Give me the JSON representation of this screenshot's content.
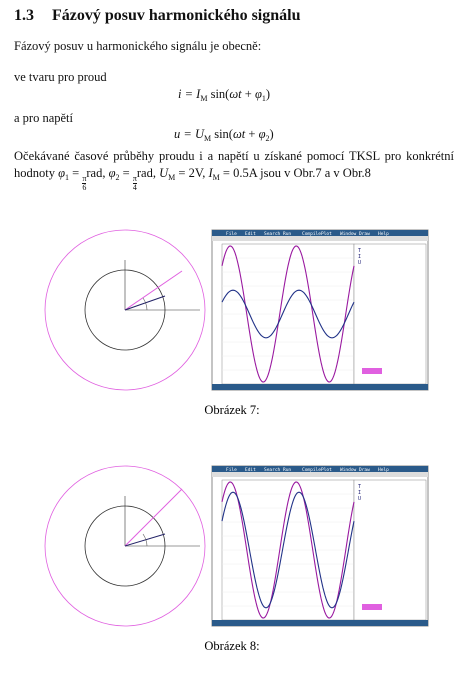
{
  "heading": {
    "number": "1.3",
    "title": "Fázový posuv harmonického signálu"
  },
  "intro": "Fázový posuv u harmonického signálu je obecně:",
  "current_label": "ve tvaru pro proud",
  "current_eq": [
    "i = ",
    "I",
    "M",
    " sin(",
    "ωt",
    " + ",
    "φ",
    "1",
    ")"
  ],
  "voltage_label": "a pro napětí",
  "voltage_eq": [
    "u = ",
    "U",
    "M",
    " sin(",
    "ωt",
    " + ",
    "φ",
    "2",
    ")"
  ],
  "paragraph": [
    "Očekávané časové průběhy proudu i a napětí u získané pomocí TKSL pro konkrétní hodnoty ",
    "φ",
    "1",
    " = ",
    "π",
    "6",
    "rad, ",
    "φ",
    "2",
    " = ",
    "π",
    "4",
    "rad, ",
    "U",
    "M",
    " = 2V, ",
    "I",
    "M",
    " = 0.5A jsou v Obr.7 a v Obr.8"
  ],
  "menu": [
    "File",
    "Edit",
    "Search",
    "Run",
    "Compile",
    "Plot",
    "Window",
    "Draw",
    "Help"
  ],
  "figures": [
    {
      "caption": "Obrázek 7:",
      "legend": [
        "T",
        "I",
        "U"
      ]
    },
    {
      "caption": "Obrázek 8:",
      "legend": [
        "T",
        "I",
        "U"
      ]
    }
  ]
}
